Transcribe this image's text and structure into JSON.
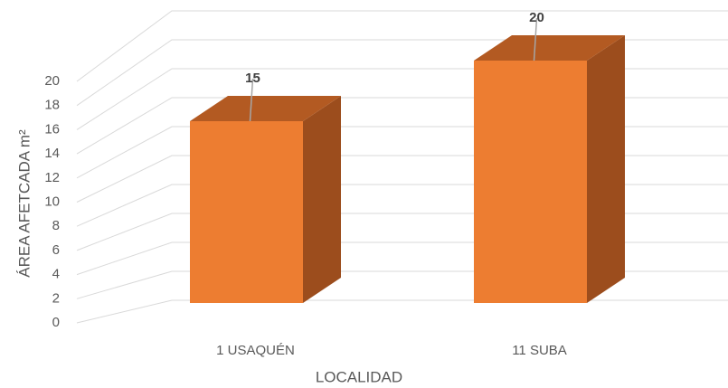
{
  "chart_data": {
    "type": "bar3d",
    "categories": [
      "1 USAQUÉN",
      "11 SUBA"
    ],
    "values": [
      15,
      20
    ],
    "color": "#ED7D31",
    "xlabel": "LOCALIDAD",
    "ylabel": "ÁREA AFETCADA m²",
    "ylim": [
      0,
      20
    ],
    "yticks": [
      0,
      2,
      4,
      6,
      8,
      10,
      12,
      14,
      16,
      18,
      20
    ],
    "grid": true
  }
}
